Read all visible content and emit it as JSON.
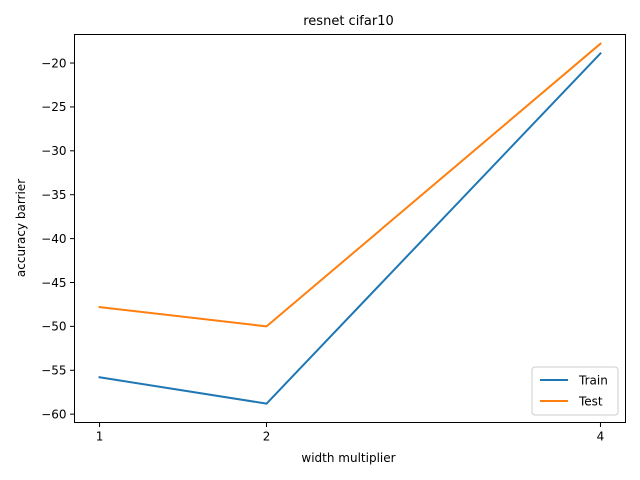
{
  "chart_data": {
    "type": "line",
    "title": "resnet cifar10",
    "xlabel": "width multiplier",
    "ylabel": "accuracy barrier",
    "x": [
      1,
      2,
      4
    ],
    "x_ticks": [
      "1",
      "2",
      "4"
    ],
    "xlim": [
      0.85,
      4.15
    ],
    "ylim": [
      -60.95,
      -16.75
    ],
    "y_ticks": [
      -60,
      -55,
      -50,
      -45,
      -40,
      -35,
      -30,
      -25,
      -20
    ],
    "grid": false,
    "legend_position": "lower-right",
    "series": [
      {
        "name": "Train",
        "color": "#1f77b4",
        "values": [
          -55.8,
          -58.8,
          -18.9
        ]
      },
      {
        "name": "Test",
        "color": "#ff7f0e",
        "values": [
          -47.8,
          -50.0,
          -17.8
        ]
      }
    ]
  }
}
